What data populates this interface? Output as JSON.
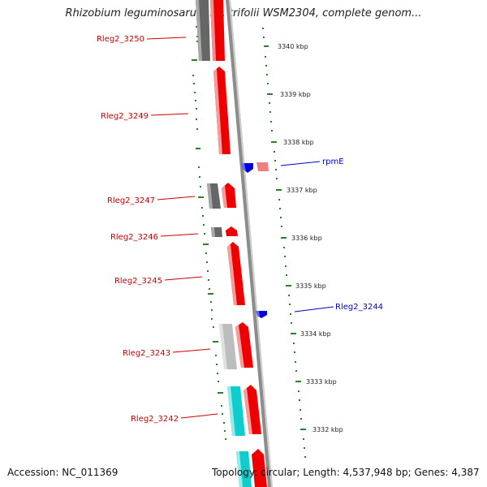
{
  "title": "Rhizobium leguminosarum bv. trifolii WSM2304, complete genom...",
  "footer": {
    "accession": "Accession: NC_011369",
    "topology": "Topology: circular; Length: 4,537,948 bp; Genes: 4,387"
  },
  "colors": {
    "gene_label_reverse": "#cc0000",
    "gene_label_forward": "#0000cc",
    "backbone": "#8c8c8c",
    "tick": "#2e7d2e",
    "red_gene": "#ee0000",
    "gray_gene": "#666666",
    "light_gray_gene": "#bdbdbd",
    "cyan_gene": "#11cccc",
    "blue_gene": "#0000dd",
    "pink_gene": "#f08080"
  },
  "scale_labels": [
    "3340 kbp",
    "3339 kbp",
    "3338 kbp",
    "3337 kbp",
    "3336 kbp",
    "3335 kbp",
    "3334 kbp",
    "3333 kbp",
    "3332 kbp"
  ],
  "gene_labels": {
    "left": [
      "Rleg2_3250",
      "Rleg2_3249",
      "Rleg2_3247",
      "Rleg2_3246",
      "Rleg2_3245",
      "Rleg2_3243",
      "Rleg2_3242"
    ],
    "right": [
      "rpmE",
      "Rleg2_3244"
    ]
  }
}
